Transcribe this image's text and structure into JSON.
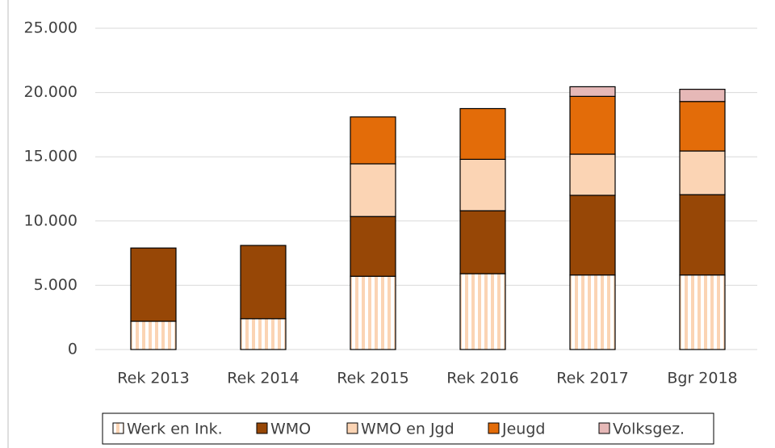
{
  "chart_data": {
    "type": "stacked-bar",
    "categories": [
      "Rek 2013",
      "Rek 2014",
      "Rek 2015",
      "Rek 2016",
      "Rek 2017",
      "Bgr 2018"
    ],
    "series": [
      {
        "name": "Werk en Ink.",
        "color": "#fbd4b4",
        "pattern": "vertical-stripes",
        "values": [
          2200,
          2400,
          5700,
          5900,
          5800,
          5800
        ]
      },
      {
        "name": "WMO",
        "color": "#974706",
        "values": [
          5700,
          5700,
          4650,
          4900,
          6200,
          6250
        ]
      },
      {
        "name": "WMO en Jgd",
        "color": "#fbd4b4",
        "values": [
          null,
          null,
          4100,
          4000,
          3200,
          3400
        ]
      },
      {
        "name": "Jeugd",
        "color": "#e36c09",
        "values": [
          null,
          null,
          3650,
          3950,
          4500,
          3850
        ]
      },
      {
        "name": "Volksgez.",
        "color": "#e6b8b7",
        "values": [
          null,
          null,
          null,
          null,
          750,
          950
        ]
      }
    ],
    "ylim": [
      0,
      25000
    ],
    "yticks": [
      0,
      {
        "value": 5000,
        "label": "5.000"
      },
      {
        "value": 10000,
        "label": "10.000"
      },
      {
        "value": 15000,
        "label": "15.000"
      },
      {
        "value": 20000,
        "label": "20.000"
      },
      {
        "value": 25000,
        "label": "25.000"
      }
    ],
    "grid": true,
    "legend": "bottom"
  }
}
